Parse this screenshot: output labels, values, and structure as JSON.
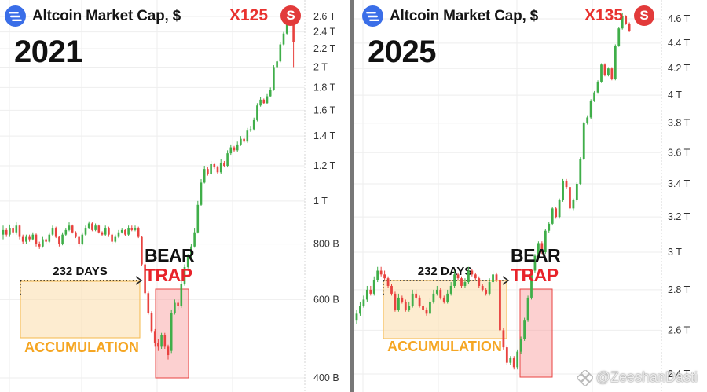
{
  "panels": [
    {
      "title": "Altcoin Market Cap, $",
      "year": "2021",
      "multiplier": "X125",
      "source_badge": "S",
      "duration_label": "232 DAYS",
      "accumulation_label": "ACCUMULATION",
      "bear_label_1": "BEAR",
      "bear_label_2": "TRAP"
    },
    {
      "title": "Altcoin Market Cap, $",
      "year": "2025",
      "multiplier": "X135",
      "source_badge": "S",
      "duration_label": "232 DAYS",
      "accumulation_label": "ACCUMULATION",
      "bear_label_1": "BEAR",
      "bear_label_2": "TRAP"
    }
  ],
  "watermark": "@ZeeshanDasti",
  "colors": {
    "up": "#3fae49",
    "down": "#e8423f",
    "accent": "#e8322f",
    "accumulation": "#f5a623",
    "logo": "#3a6ee8"
  },
  "chart_data": [
    {
      "type": "candlestick",
      "title": "Altcoin Market Cap, $",
      "y_scale": "log",
      "ylim": [
        380000000000,
        2700000000000
      ],
      "y_ticks": [
        "2.6 T",
        "2.4 T",
        "2.2 T",
        "2 T",
        "1.8 T",
        "1.6 T",
        "1.4 T",
        "1.2 T",
        "1 T",
        "800 B",
        "600 B",
        "400 B"
      ],
      "y_tick_values": [
        2600000000000,
        2400000000000,
        2200000000000,
        2000000000000,
        1800000000000,
        1600000000000,
        1400000000000,
        1200000000000,
        1000000000000,
        800000000000,
        600000000000,
        400000000000
      ],
      "annotations": {
        "accumulation_box": {
          "label": "ACCUMULATION",
          "duration": "232 DAYS"
        },
        "bear_trap_box": {
          "label": "BEAR TRAP"
        },
        "multiplier": "X125"
      },
      "series": [
        {
          "close": [
            860,
            840,
            870,
            850,
            880,
            830,
            810,
            830,
            820,
            840,
            800,
            790,
            820,
            810,
            840,
            870,
            830,
            800,
            840,
            860,
            880,
            850,
            830,
            800,
            840,
            870,
            890,
            860,
            880,
            850,
            840,
            870,
            840,
            810,
            830,
            850,
            860,
            840,
            870,
            860,
            870,
            830,
            720,
            620,
            560,
            510,
            480,
            470,
            500,
            470,
            450,
            560,
            590,
            580,
            650,
            710,
            750,
            790,
            850,
            980,
            1100,
            1180,
            1150,
            1210,
            1190,
            1160,
            1220,
            1200,
            1280,
            1320,
            1300,
            1340,
            1380,
            1360,
            1440,
            1450,
            1520,
            1640,
            1690,
            1660,
            1720,
            1780,
            2000,
            2060,
            2250,
            2380,
            2560,
            2540,
            2280
          ],
          "open": [
            840,
            860,
            840,
            870,
            850,
            880,
            830,
            810,
            830,
            820,
            840,
            800,
            790,
            820,
            810,
            840,
            870,
            830,
            800,
            840,
            860,
            880,
            850,
            830,
            800,
            840,
            870,
            890,
            860,
            880,
            850,
            840,
            870,
            840,
            810,
            830,
            850,
            860,
            840,
            870,
            860,
            870,
            830,
            720,
            620,
            560,
            510,
            480,
            470,
            500,
            470,
            460,
            560,
            590,
            580,
            650,
            710,
            750,
            790,
            850,
            980,
            1100,
            1180,
            1150,
            1210,
            1190,
            1160,
            1220,
            1200,
            1280,
            1320,
            1300,
            1340,
            1380,
            1360,
            1440,
            1450,
            1520,
            1640,
            1690,
            1660,
            1720,
            1780,
            2000,
            2060,
            2250,
            2380,
            2560,
            2540
          ],
          "high": [
            880,
            870,
            885,
            880,
            895,
            885,
            840,
            840,
            840,
            850,
            845,
            810,
            830,
            825,
            850,
            880,
            875,
            835,
            850,
            870,
            895,
            885,
            855,
            835,
            850,
            880,
            900,
            895,
            890,
            885,
            855,
            880,
            875,
            845,
            840,
            860,
            870,
            865,
            880,
            880,
            880,
            875,
            835,
            725,
            625,
            565,
            515,
            490,
            505,
            505,
            475,
            570,
            600,
            600,
            660,
            720,
            760,
            800,
            870,
            1000,
            1120,
            1200,
            1190,
            1230,
            1220,
            1200,
            1240,
            1230,
            1300,
            1340,
            1330,
            1360,
            1400,
            1390,
            1460,
            1470,
            1540,
            1660,
            1710,
            1700,
            1740,
            1800,
            2020,
            2080,
            2280,
            2400,
            2600,
            2600,
            2570
          ],
          "low": [
            820,
            830,
            830,
            840,
            840,
            820,
            800,
            800,
            810,
            815,
            790,
            780,
            785,
            800,
            805,
            835,
            825,
            790,
            795,
            835,
            855,
            845,
            825,
            790,
            795,
            835,
            865,
            855,
            855,
            845,
            835,
            835,
            830,
            800,
            805,
            825,
            845,
            835,
            835,
            855,
            855,
            825,
            715,
            615,
            555,
            505,
            470,
            460,
            465,
            465,
            440,
            455,
            555,
            570,
            575,
            645,
            705,
            745,
            785,
            845,
            975,
            1095,
            1140,
            1145,
            1180,
            1150,
            1150,
            1190,
            1190,
            1270,
            1290,
            1290,
            1330,
            1350,
            1350,
            1430,
            1440,
            1510,
            1630,
            1650,
            1650,
            1710,
            1770,
            1990,
            2050,
            2240,
            2370,
            2520,
            2000
          ]
        }
      ]
    },
    {
      "type": "candlestick",
      "title": "Altcoin Market Cap, $",
      "y_scale": "log",
      "ylim": [
        2400000000000,
        4700000000000
      ],
      "y_ticks": [
        "4.6 T",
        "4.4 T",
        "4.2 T",
        "4 T",
        "3.8 T",
        "3.6 T",
        "3.4 T",
        "3.2 T",
        "3 T",
        "2.8 T",
        "2.6 T",
        "2.4 T"
      ],
      "y_tick_values": [
        4600000000000,
        4400000000000,
        4200000000000,
        4000000000000,
        3800000000000,
        3600000000000,
        3400000000000,
        3200000000000,
        3000000000000,
        2800000000000,
        2600000000000,
        2400000000000
      ],
      "annotations": {
        "accumulation_box": {
          "label": "ACCUMULATION",
          "duration": "232 DAYS"
        },
        "bear_trap_box": {
          "label": "BEAR TRAP"
        },
        "multiplier": "X135"
      },
      "series": [
        {
          "close": [
            2680,
            2720,
            2750,
            2800,
            2780,
            2850,
            2900,
            2880,
            2860,
            2820,
            2780,
            2700,
            2760,
            2740,
            2700,
            2720,
            2780,
            2760,
            2720,
            2700,
            2680,
            2740,
            2780,
            2800,
            2760,
            2740,
            2780,
            2820,
            2880,
            2860,
            2820,
            2840,
            2900,
            2880,
            2860,
            2820,
            2800,
            2780,
            2840,
            2880,
            2850,
            2600,
            2520,
            2450,
            2470,
            2430,
            2500,
            2560,
            2650,
            2760,
            2900,
            2980,
            3050,
            3000,
            3120,
            3160,
            3250,
            3200,
            3300,
            3420,
            3380,
            3250,
            3300,
            3400,
            3560,
            3800,
            3840,
            3960,
            4020,
            4100,
            4230,
            4150,
            4200,
            4120,
            4380,
            4520,
            4620,
            4560,
            4500
          ],
          "open": [
            2650,
            2680,
            2720,
            2750,
            2800,
            2780,
            2850,
            2900,
            2880,
            2860,
            2820,
            2780,
            2700,
            2760,
            2740,
            2700,
            2720,
            2780,
            2760,
            2720,
            2700,
            2680,
            2740,
            2780,
            2800,
            2760,
            2740,
            2780,
            2820,
            2880,
            2860,
            2820,
            2840,
            2900,
            2880,
            2860,
            2820,
            2800,
            2780,
            2840,
            2880,
            2850,
            2600,
            2520,
            2450,
            2470,
            2430,
            2500,
            2560,
            2650,
            2760,
            2900,
            2980,
            3050,
            3000,
            3120,
            3160,
            3250,
            3200,
            3300,
            3420,
            3380,
            3250,
            3300,
            3400,
            3560,
            3800,
            3840,
            3960,
            4020,
            4100,
            4230,
            4150,
            4200,
            4120,
            4380,
            4520,
            4620,
            4560
          ],
          "high": [
            2700,
            2740,
            2770,
            2820,
            2820,
            2870,
            2920,
            2920,
            2900,
            2870,
            2830,
            2790,
            2780,
            2770,
            2750,
            2740,
            2800,
            2800,
            2770,
            2730,
            2710,
            2760,
            2800,
            2820,
            2810,
            2770,
            2800,
            2840,
            2900,
            2890,
            2870,
            2860,
            2920,
            2910,
            2890,
            2870,
            2830,
            2810,
            2860,
            2900,
            2890,
            2860,
            2610,
            2530,
            2480,
            2480,
            2510,
            2570,
            2660,
            2770,
            2910,
            2990,
            3060,
            3060,
            3130,
            3170,
            3260,
            3260,
            3310,
            3430,
            3430,
            3390,
            3310,
            3410,
            3570,
            3810,
            3850,
            3970,
            4030,
            4110,
            4240,
            4240,
            4210,
            4210,
            4390,
            4530,
            4650,
            4630,
            4570
          ],
          "low": [
            2630,
            2670,
            2710,
            2740,
            2770,
            2770,
            2840,
            2870,
            2850,
            2810,
            2770,
            2690,
            2690,
            2730,
            2690,
            2690,
            2710,
            2750,
            2710,
            2690,
            2670,
            2670,
            2730,
            2770,
            2750,
            2730,
            2730,
            2770,
            2810,
            2850,
            2810,
            2810,
            2830,
            2870,
            2850,
            2810,
            2790,
            2770,
            2770,
            2830,
            2840,
            2590,
            2510,
            2440,
            2440,
            2420,
            2420,
            2490,
            2550,
            2640,
            2750,
            2890,
            2970,
            2990,
            2990,
            3110,
            3150,
            3190,
            3190,
            3290,
            3370,
            3240,
            3240,
            3290,
            3390,
            3550,
            3790,
            3830,
            3950,
            4010,
            4090,
            4140,
            4140,
            4110,
            4110,
            4370,
            4510,
            4550,
            4490
          ]
        }
      ]
    }
  ]
}
